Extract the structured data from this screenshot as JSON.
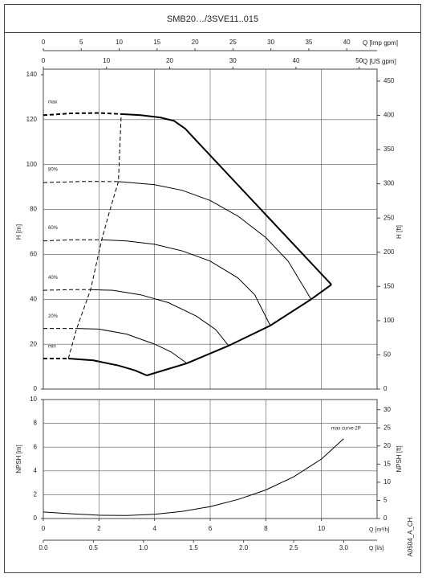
{
  "title": "SMB20…/3SVE11..015",
  "code": "A0504_A_CH",
  "chart_data": [
    {
      "type": "line",
      "ylabel": "H [m]",
      "y2label": "H [ft]",
      "color": "#000000",
      "grid": true,
      "label_at": "start",
      "xlim": [
        0,
        12
      ],
      "ylim": [
        0,
        140
      ],
      "yticks": [
        0,
        20,
        40,
        60,
        80,
        100,
        120,
        140
      ],
      "y2lim": [
        0,
        459.3
      ],
      "y2ticks": [
        0,
        50,
        100,
        150,
        200,
        250,
        300,
        350,
        400,
        450
      ],
      "top_axes": [
        {
          "label": "Q [Imp gpm]",
          "lim": [
            0,
            44
          ],
          "ticks": [
            0,
            5,
            10,
            15,
            20,
            25,
            30,
            35,
            40
          ]
        },
        {
          "label": "Q [US gpm]",
          "lim": [
            0,
            52.83
          ],
          "ticks": [
            0,
            10,
            20,
            30,
            40,
            50
          ]
        }
      ],
      "series": [
        {
          "style": "dashed",
          "bold": true,
          "x": [
            0,
            1,
            2,
            2.8
          ],
          "y": [
            122,
            122.8,
            123,
            122.5
          ]
        },
        {
          "name": "max",
          "style": "solid",
          "bold": true,
          "x": [
            2.8,
            3.5,
            4.2,
            4.7,
            5.1,
            5.4,
            10.36
          ],
          "y": [
            122.5,
            122,
            121,
            119.5,
            116,
            112,
            46.5
          ]
        },
        {
          "style": "dashed",
          "x": [
            0,
            1.5,
            2.7
          ],
          "y": [
            92,
            92.5,
            92.4
          ]
        },
        {
          "name": "80%",
          "style": "solid",
          "x": [
            2.7,
            4,
            5,
            6,
            7,
            8,
            8.8,
            9.63
          ],
          "y": [
            92.4,
            91,
            88.5,
            84,
            77,
            67.5,
            57,
            40
          ]
        },
        {
          "style": "dashed",
          "x": [
            0,
            1,
            2.1
          ],
          "y": [
            66,
            66.5,
            66.5
          ]
        },
        {
          "name": "60%",
          "style": "solid",
          "x": [
            2.1,
            3,
            4,
            5,
            6,
            7,
            7.6,
            8.16
          ],
          "y": [
            66.5,
            66,
            64.5,
            61.5,
            57,
            49.5,
            42,
            28.3
          ]
        },
        {
          "style": "dashed",
          "x": [
            0,
            1,
            1.7
          ],
          "y": [
            44,
            44.3,
            44.3
          ]
        },
        {
          "name": "40%",
          "style": "solid",
          "x": [
            1.7,
            2.5,
            3.5,
            4.5,
            5.5,
            6.2,
            6.66
          ],
          "y": [
            44.3,
            44,
            42,
            38.5,
            32.5,
            26.5,
            19.3
          ]
        },
        {
          "style": "dashed",
          "x": [
            0,
            1.2
          ],
          "y": [
            27,
            27
          ]
        },
        {
          "name": "20%",
          "style": "solid",
          "x": [
            1.2,
            2,
            3,
            4,
            4.6,
            5.16
          ],
          "y": [
            27,
            26.7,
            24.5,
            20,
            16.5,
            11.5
          ]
        },
        {
          "style": "dashed",
          "bold": true,
          "x": [
            0,
            0.9
          ],
          "y": [
            13.6,
            13.6
          ]
        },
        {
          "name": "min",
          "style": "solid",
          "bold": true,
          "x": [
            0.9,
            1.8,
            2.7,
            3.3,
            3.72
          ],
          "y": [
            13.6,
            12.8,
            10.5,
            8.3,
            6.1
          ]
        },
        {
          "style": "solid",
          "bold": true,
          "x": [
            10.36,
            9.63,
            8.16,
            6.66,
            5.16,
            3.72
          ],
          "y": [
            46.5,
            40,
            28.3,
            19.3,
            11.5,
            6.1
          ]
        },
        {
          "style": "dashed",
          "x": [
            0.9,
            1.2,
            1.7,
            2.1,
            2.4,
            2.7,
            2.8
          ],
          "y": [
            13.6,
            27,
            44.3,
            66.5,
            80,
            92.4,
            122.5
          ]
        }
      ]
    },
    {
      "type": "line",
      "ylabel": "NPSH [m]",
      "y2label": "NPSH [ft]",
      "color": "#000000",
      "grid": true,
      "label_at": "end",
      "xlabel": "Q [m³/h]",
      "xlim": [
        0,
        12
      ],
      "xticks": [
        0,
        2,
        4,
        6,
        8,
        10
      ],
      "ylim": [
        0,
        10
      ],
      "yticks": [
        0,
        2,
        4,
        6,
        8,
        10
      ],
      "y2lim": [
        0,
        32.81
      ],
      "y2ticks": [
        0,
        5,
        10,
        15,
        20,
        25,
        30
      ],
      "bottom_axes": [
        {
          "label": "Q [l/s]",
          "lim": [
            0,
            3.333
          ],
          "ticks": [
            {
              "value": 0,
              "label": "0.0"
            },
            0.5,
            {
              "value": 1,
              "label": "1.0"
            },
            1.5,
            {
              "value": 2,
              "label": "2.0"
            },
            2.5,
            {
              "value": 3,
              "label": "3.0"
            }
          ]
        }
      ],
      "series": [
        {
          "name": "max curve 2P",
          "style": "solid",
          "x": [
            0,
            1,
            2,
            3,
            4,
            5,
            6,
            7,
            8,
            9,
            10,
            10.8
          ],
          "y": [
            0.55,
            0.4,
            0.28,
            0.25,
            0.35,
            0.6,
            1.0,
            1.6,
            2.4,
            3.5,
            5.0,
            6.7
          ]
        }
      ]
    }
  ]
}
